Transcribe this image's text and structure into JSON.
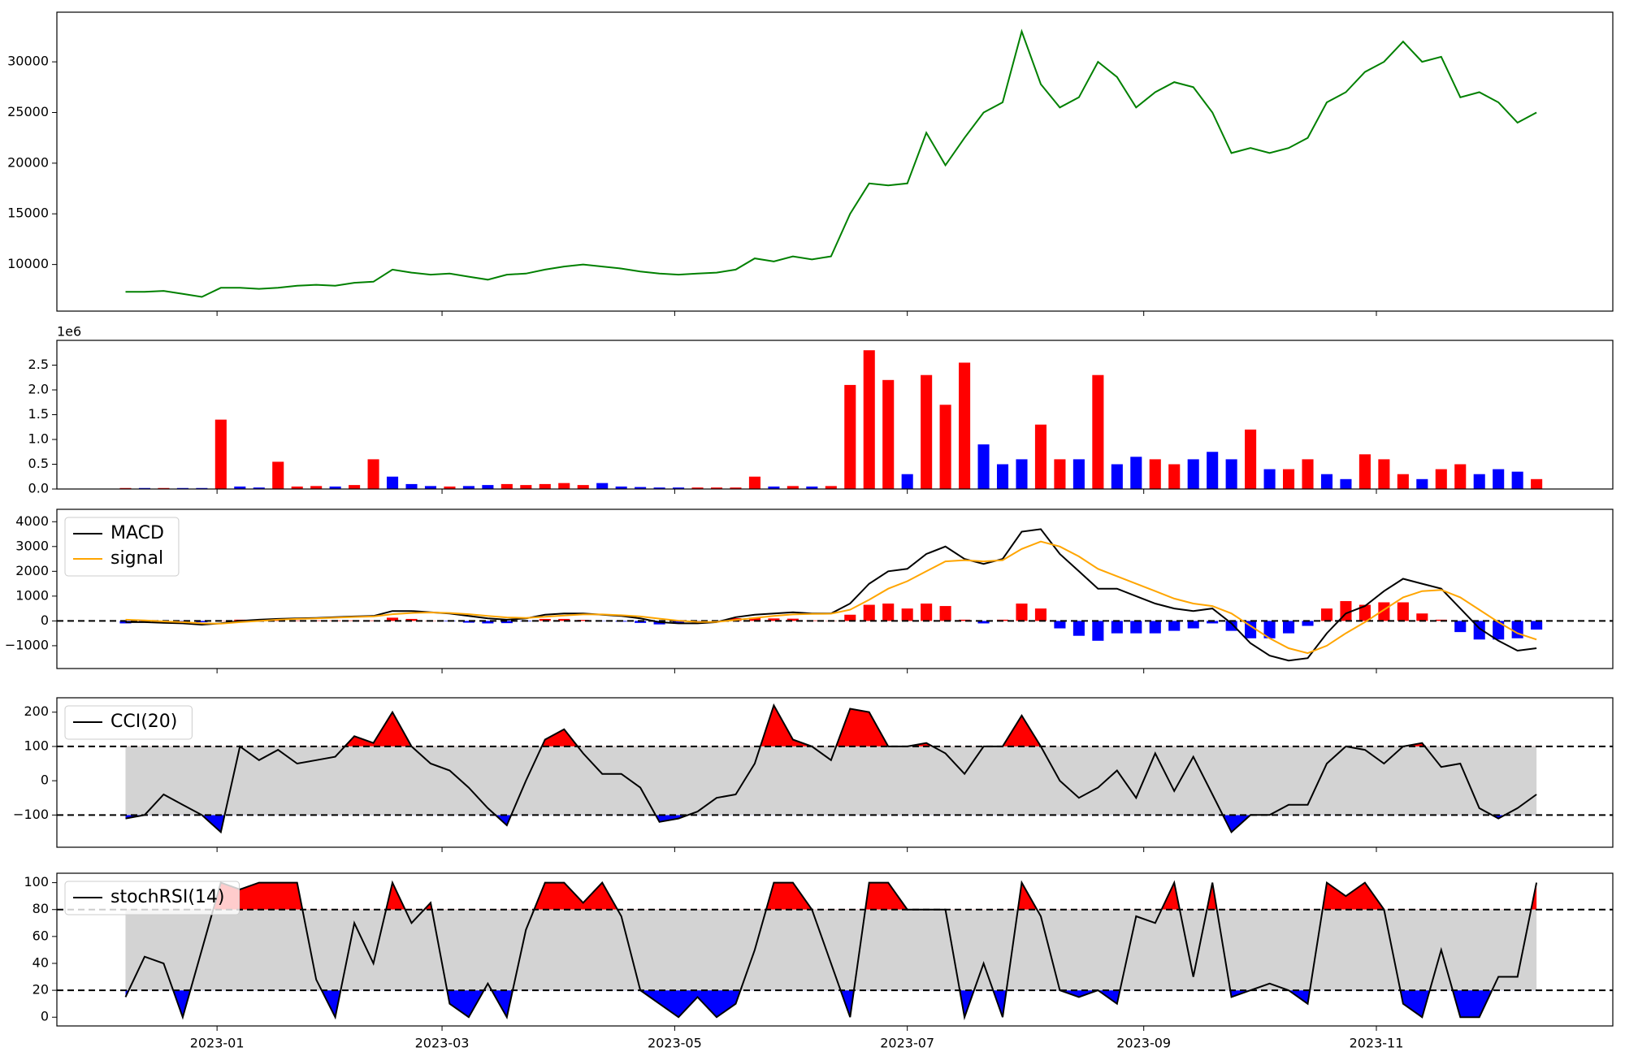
{
  "x_axis": {
    "x": [
      0,
      5,
      10,
      15,
      20,
      25,
      30,
      35,
      40,
      45,
      50,
      55,
      60,
      65,
      70,
      75,
      80,
      85,
      90,
      95,
      100,
      105,
      110,
      115,
      120,
      125,
      130,
      135,
      140,
      145,
      150,
      155,
      160,
      165,
      170,
      175,
      180,
      185,
      190,
      195,
      200,
      205,
      210,
      215,
      220,
      225,
      230,
      235,
      240,
      245,
      250,
      255,
      260,
      265,
      270,
      275,
      280,
      285,
      290,
      295,
      300,
      305,
      310,
      315,
      320,
      325,
      330,
      335,
      340,
      345,
      350,
      355,
      360,
      365,
      370
    ],
    "xlim": [
      -18,
      390
    ],
    "xticks": [
      {
        "value": 24,
        "label": "2023-01"
      },
      {
        "value": 83,
        "label": "2023-03"
      },
      {
        "value": 144,
        "label": "2023-05"
      },
      {
        "value": 205,
        "label": "2023-07"
      },
      {
        "value": 267,
        "label": "2023-09"
      },
      {
        "value": 328,
        "label": "2023-11"
      }
    ]
  },
  "chart_data": [
    {
      "type": "line",
      "ylim": [
        5400,
        34900
      ],
      "yticks": [
        10000,
        15000,
        20000,
        25000,
        30000
      ],
      "series": [
        {
          "color": "#008000",
          "values": [
            7300,
            7300,
            7400,
            7100,
            6800,
            7700,
            7700,
            7600,
            7700,
            7900,
            8000,
            7900,
            8200,
            8300,
            9500,
            9200,
            9000,
            9100,
            8800,
            8500,
            9000,
            9100,
            9500,
            9800,
            10000,
            9800,
            9600,
            9300,
            9100,
            9000,
            9100,
            9200,
            9500,
            10600,
            10300,
            10800,
            10500,
            10800,
            15000,
            18000,
            17800,
            18000,
            23000,
            19800,
            22500,
            25000,
            26000,
            33000,
            27800,
            25500,
            26500,
            30000,
            28500,
            25500,
            27000,
            28000,
            27500,
            25000,
            21000,
            21500,
            21000,
            21500,
            22500,
            26000,
            27000,
            29000,
            30000,
            32000,
            30000,
            30500,
            26500,
            27000,
            26000,
            24000,
            25000
          ]
        }
      ]
    },
    {
      "type": "bar",
      "offset_label": "1e6",
      "ylim": [
        0,
        3.0
      ],
      "yticks": [
        {
          "value": 0,
          "label": "0.0"
        },
        {
          "value": 0.5,
          "label": "0.5"
        },
        {
          "value": 1,
          "label": "1.0"
        },
        {
          "value": 1.5,
          "label": "1.5"
        },
        {
          "value": 2,
          "label": "2.0"
        },
        {
          "value": 2.5,
          "label": "2.5"
        }
      ],
      "values": [
        0.02,
        0.02,
        0.02,
        0.02,
        0.02,
        1.4,
        0.05,
        0.03,
        0.55,
        0.05,
        0.06,
        0.05,
        0.08,
        0.6,
        0.25,
        0.1,
        0.06,
        0.05,
        0.06,
        0.08,
        0.1,
        0.08,
        0.1,
        0.12,
        0.08,
        0.12,
        0.05,
        0.04,
        0.03,
        0.03,
        0.03,
        0.03,
        0.03,
        0.25,
        0.05,
        0.06,
        0.05,
        0.06,
        2.1,
        2.8,
        2.2,
        0.3,
        2.3,
        1.7,
        2.55,
        0.9,
        0.5,
        0.6,
        1.3,
        0.6,
        0.6,
        2.3,
        0.5,
        0.65,
        0.6,
        0.5,
        0.6,
        0.75,
        0.6,
        1.2,
        0.4,
        0.4,
        0.6,
        0.3,
        0.2,
        0.7,
        0.6,
        0.3,
        0.2,
        0.4,
        0.5,
        0.3,
        0.4,
        0.35,
        0.2
      ],
      "colors": [
        "red",
        "blue",
        "red",
        "blue",
        "blue",
        "red",
        "blue",
        "blue",
        "red",
        "red",
        "red",
        "blue",
        "red",
        "red",
        "blue",
        "blue",
        "blue",
        "red",
        "blue",
        "blue",
        "red",
        "red",
        "red",
        "red",
        "red",
        "blue",
        "blue",
        "blue",
        "blue",
        "blue",
        "red",
        "red",
        "red",
        "red",
        "blue",
        "red",
        "blue",
        "red",
        "red",
        "red",
        "red",
        "blue",
        "red",
        "red",
        "red",
        "blue",
        "blue",
        "blue",
        "red",
        "red",
        "blue",
        "red",
        "blue",
        "blue",
        "red",
        "red",
        "blue",
        "blue",
        "blue",
        "red",
        "blue",
        "red",
        "red",
        "blue",
        "blue",
        "red",
        "red",
        "red",
        "blue",
        "red",
        "red",
        "blue",
        "blue",
        "blue",
        "red"
      ]
    },
    {
      "type": "line",
      "ylim": [
        -1920,
        4500
      ],
      "yticks": [
        {
          "value": -1000,
          "label": "−1000"
        },
        0,
        1000,
        2000,
        3000,
        4000
      ],
      "zero_line": 0,
      "hist_colors": [
        "red",
        "blue"
      ],
      "series": [
        {
          "name": "MACD",
          "color": "#000000",
          "values": [
            -50,
            -50,
            -80,
            -100,
            -150,
            -100,
            0,
            50,
            80,
            100,
            120,
            150,
            180,
            200,
            400,
            400,
            350,
            300,
            200,
            100,
            50,
            100,
            250,
            300,
            300,
            250,
            200,
            100,
            -50,
            -100,
            -100,
            -50,
            150,
            250,
            300,
            350,
            300,
            300,
            700,
            1500,
            2000,
            2100,
            2700,
            3000,
            2500,
            2300,
            2500,
            3600,
            3700,
            2700,
            2000,
            1300,
            1300,
            1000,
            700,
            500,
            400,
            500,
            -100,
            -900,
            -1400,
            -1600,
            -1500,
            -500,
            300,
            600,
            1200,
            1700,
            1500,
            1300,
            500,
            -300,
            -800,
            -1200,
            -1100
          ]
        },
        {
          "name": "signal",
          "color": "#ffa500",
          "values": [
            50,
            20,
            -20,
            -50,
            -100,
            -110,
            -50,
            0,
            50,
            80,
            100,
            130,
            160,
            180,
            270,
            320,
            340,
            320,
            270,
            200,
            140,
            120,
            170,
            220,
            260,
            260,
            230,
            180,
            90,
            10,
            -40,
            -40,
            40,
            120,
            200,
            260,
            280,
            290,
            450,
            850,
            1300,
            1600,
            2000,
            2400,
            2450,
            2400,
            2450,
            2900,
            3200,
            3000,
            2600,
            2100,
            1800,
            1500,
            1200,
            900,
            700,
            600,
            300,
            -200,
            -700,
            -1100,
            -1300,
            -1000,
            -500,
            -50,
            450,
            950,
            1200,
            1250,
            950,
            450,
            -50,
            -500,
            -750
          ]
        }
      ],
      "histogram": [
        -100,
        -70,
        -60,
        -50,
        -50,
        10,
        50,
        50,
        30,
        20,
        20,
        20,
        20,
        20,
        130,
        80,
        10,
        -20,
        -70,
        -100,
        -90,
        -20,
        80,
        80,
        40,
        -10,
        -30,
        -80,
        -140,
        -110,
        -60,
        -10,
        110,
        130,
        100,
        90,
        20,
        10,
        250,
        650,
        700,
        500,
        700,
        600,
        50,
        -100,
        50,
        700,
        500,
        -300,
        -600,
        -800,
        -500,
        -500,
        -500,
        -400,
        -300,
        -100,
        -400,
        -700,
        -700,
        -500,
        -200,
        500,
        800,
        650,
        750,
        750,
        300,
        50,
        -450,
        -750,
        -750,
        -700,
        -350
      ]
    },
    {
      "type": "band",
      "ylim": [
        -194,
        242
      ],
      "yticks": [
        {
          "value": -100,
          "label": "−100"
        },
        0,
        100,
        200
      ],
      "levels": [
        100,
        -100
      ],
      "band_color": "#d3d3d3",
      "above_color": "red",
      "below_color": "blue",
      "series": [
        {
          "name": "CCI(20)",
          "color": "#000000",
          "values": [
            -110,
            -100,
            -40,
            -70,
            -100,
            -150,
            100,
            60,
            90,
            50,
            60,
            70,
            130,
            110,
            200,
            100,
            50,
            30,
            -20,
            -80,
            -130,
            0,
            120,
            150,
            80,
            20,
            20,
            -20,
            -120,
            -110,
            -90,
            -50,
            -40,
            50,
            220,
            120,
            100,
            60,
            210,
            200,
            100,
            100,
            110,
            80,
            20,
            100,
            100,
            190,
            100,
            0,
            -50,
            -20,
            30,
            -50,
            80,
            -30,
            70,
            -40,
            -150,
            -100,
            -100,
            -70,
            -70,
            50,
            100,
            90,
            50,
            100,
            110,
            40,
            50,
            -80,
            -110,
            -80,
            -40
          ]
        }
      ]
    },
    {
      "type": "band",
      "ylim": [
        -6.5,
        107
      ],
      "yticks": [
        0,
        20,
        40,
        60,
        80,
        100
      ],
      "levels": [
        80,
        20
      ],
      "band_color": "#d3d3d3",
      "above_color": "red",
      "below_color": "blue",
      "series": [
        {
          "name": "stochRSI(14)",
          "color": "#000000",
          "values": [
            15,
            45,
            40,
            0,
            50,
            100,
            95,
            100,
            100,
            100,
            28,
            0,
            70,
            40,
            100,
            70,
            85,
            10,
            0,
            25,
            0,
            65,
            100,
            100,
            85,
            100,
            75,
            20,
            10,
            0,
            15,
            0,
            10,
            50,
            100,
            100,
            80,
            40,
            0,
            100,
            100,
            80,
            80,
            80,
            0,
            40,
            0,
            100,
            75,
            20,
            15,
            20,
            10,
            75,
            70,
            100,
            30,
            100,
            15,
            20,
            25,
            20,
            10,
            100,
            90,
            100,
            80,
            10,
            0,
            50,
            0,
            0,
            30,
            30,
            100
          ]
        }
      ]
    }
  ]
}
